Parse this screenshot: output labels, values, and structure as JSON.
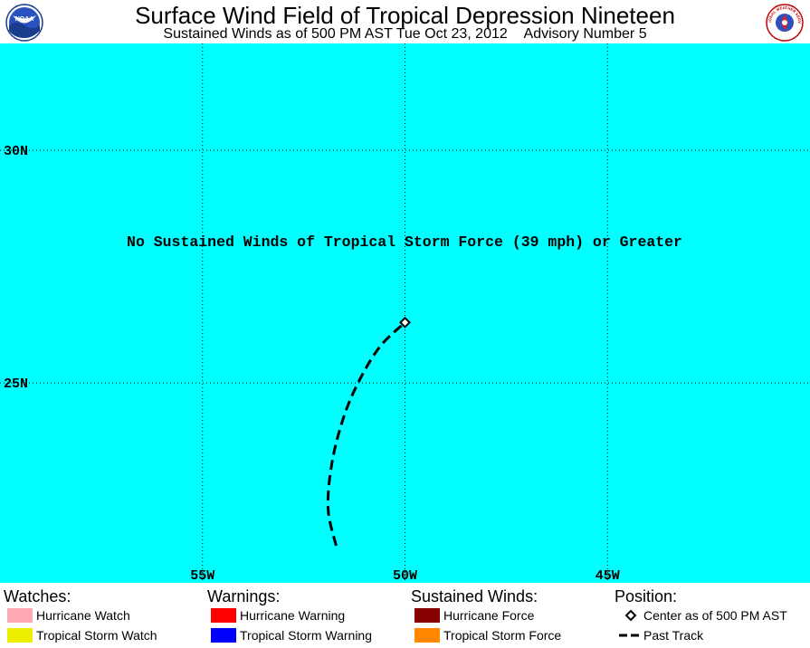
{
  "header": {
    "title": "Surface Wind Field of Tropical Depression Nineteen",
    "subtitle_time": "Sustained Winds as of 500 PM AST Tue Oct 23, 2012",
    "subtitle_advisory": "Advisory Number 5",
    "left_logo_text": "NOAA",
    "right_logo_text": "NATIONAL WEATHER SERVICE"
  },
  "map": {
    "background_color": "#00FFFF",
    "lon_range": [
      -60,
      -40
    ],
    "lat_range": [
      20.7,
      32.3
    ],
    "longitude_lines": [
      -55,
      -50,
      -45
    ],
    "latitude_lines": [
      25,
      30
    ],
    "longitude_labels": [
      "55W",
      "50W",
      "45W"
    ],
    "latitude_labels": [
      "25N",
      "30N"
    ],
    "message": "No Sustained Winds of Tropical Storm Force (39 mph) or Greater",
    "current_center": {
      "lon": -50.0,
      "lat": 26.3
    },
    "past_track": [
      {
        "lon": -51.7,
        "lat": 21.5
      },
      {
        "lon": -51.9,
        "lat": 22.3
      },
      {
        "lon": -51.8,
        "lat": 23.3
      },
      {
        "lon": -51.5,
        "lat": 24.3
      },
      {
        "lon": -51.1,
        "lat": 25.1
      },
      {
        "lon": -50.6,
        "lat": 25.8
      },
      {
        "lon": -50.0,
        "lat": 26.3
      }
    ]
  },
  "legend": {
    "watches": {
      "heading": "Watches:",
      "items": [
        {
          "label": "Hurricane Watch",
          "color": "#FFAAB4"
        },
        {
          "label": "Tropical Storm Watch",
          "color": "#EEEE00"
        }
      ]
    },
    "warnings": {
      "heading": "Warnings:",
      "items": [
        {
          "label": "Hurricane Warning",
          "color": "#FF0000"
        },
        {
          "label": "Tropical Storm Warning",
          "color": "#0000FF"
        }
      ]
    },
    "winds": {
      "heading": "Sustained Winds:",
      "items": [
        {
          "label": "Hurricane Force",
          "color": "#880000"
        },
        {
          "label": "Tropical Storm Force",
          "color": "#FF8800"
        }
      ]
    },
    "position": {
      "heading": "Position:",
      "center_label": "Center as of 500 PM AST",
      "track_label": "Past Track"
    }
  }
}
